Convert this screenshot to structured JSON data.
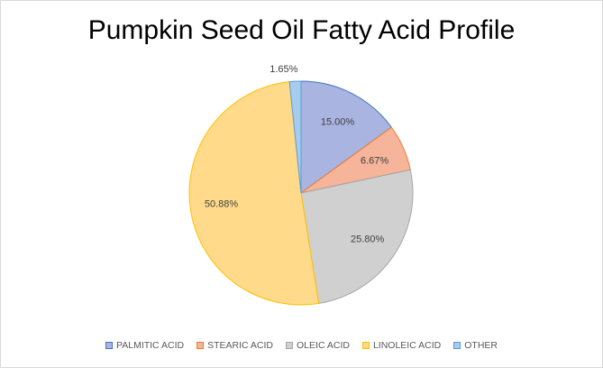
{
  "chart_data": {
    "type": "pie",
    "title": "Pumpkin Seed Oil Fatty Acid Profile",
    "legend_position": "bottom",
    "slices": [
      {
        "label": "PALMITIC ACID",
        "value": 15.0,
        "display": "15.00%",
        "color": "#a9b4e0",
        "stroke": "#4472c4"
      },
      {
        "label": "STEARIC ACID",
        "value": 6.67,
        "display": "6.67%",
        "color": "#f6b49a",
        "stroke": "#ed7d31"
      },
      {
        "label": "OLEIC ACID",
        "value": 25.8,
        "display": "25.80%",
        "color": "#d0d0d0",
        "stroke": "#a5a5a5"
      },
      {
        "label": "LINOLEIC ACID",
        "value": 50.88,
        "display": "50.88%",
        "color": "#ffda8a",
        "stroke": "#ffc000"
      },
      {
        "label": "OTHER",
        "value": 1.65,
        "display": "1.65%",
        "color": "#a6cdee",
        "stroke": "#5b9bd5"
      }
    ]
  }
}
